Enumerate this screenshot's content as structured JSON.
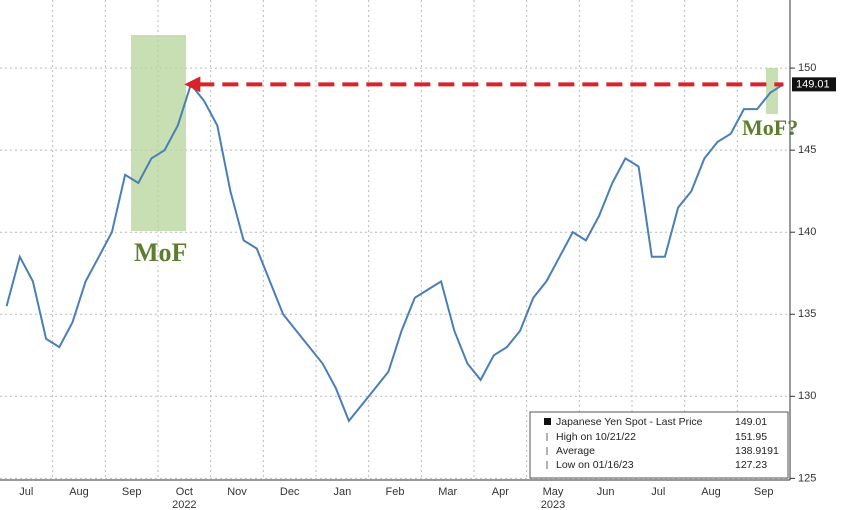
{
  "chart_data": {
    "type": "line",
    "categories": [
      "Jul",
      null,
      null,
      null,
      "Aug",
      null,
      null,
      null,
      "Sep",
      null,
      null,
      null,
      "Oct",
      null,
      null,
      null,
      "Nov",
      null,
      null,
      null,
      "Dec",
      null,
      null,
      null,
      "Jan",
      null,
      null,
      null,
      "Feb",
      null,
      null,
      null,
      "Mar",
      null,
      null,
      null,
      "Apr",
      null,
      null,
      null,
      "May",
      null,
      null,
      null,
      "Jun",
      null,
      null,
      null,
      "Jul",
      null,
      null,
      null,
      "Aug",
      null,
      null,
      null,
      "Sep",
      null,
      null,
      null
    ],
    "years": [
      "2022",
      "2023"
    ],
    "series": [
      {
        "name": "Japanese Yen Spot - Last Price",
        "color": "#4a7fb5",
        "values": [
          135.5,
          138.5,
          137,
          133.5,
          133,
          134.5,
          137,
          138.5,
          140,
          143.5,
          143,
          144.5,
          145,
          146.5,
          149,
          148,
          146.5,
          142.5,
          139.5,
          139,
          137,
          135,
          134,
          133,
          132,
          130.5,
          128.5,
          129.5,
          130.5,
          131.5,
          134,
          136,
          136.5,
          137,
          134,
          132,
          131,
          132.5,
          133,
          134,
          136,
          137,
          138.5,
          140,
          139.5,
          141,
          143,
          144.5,
          144,
          138.5,
          138.5,
          141.5,
          142.5,
          144.5,
          145.5,
          146,
          147.5,
          147.5,
          148.5,
          149.01
        ]
      }
    ],
    "legend_stats": [
      {
        "label": "High on 10/21/22",
        "value": 151.95
      },
      {
        "label": "Average",
        "value": 138.9191
      },
      {
        "label": "Low on 01/16/23",
        "value": 127.23
      }
    ],
    "annotations": [
      "MoF",
      "MoF?"
    ],
    "ylim": [
      124.9,
      154.15
    ],
    "yticks": [
      125,
      130,
      135,
      140,
      145,
      150
    ],
    "grid": true
  }
}
